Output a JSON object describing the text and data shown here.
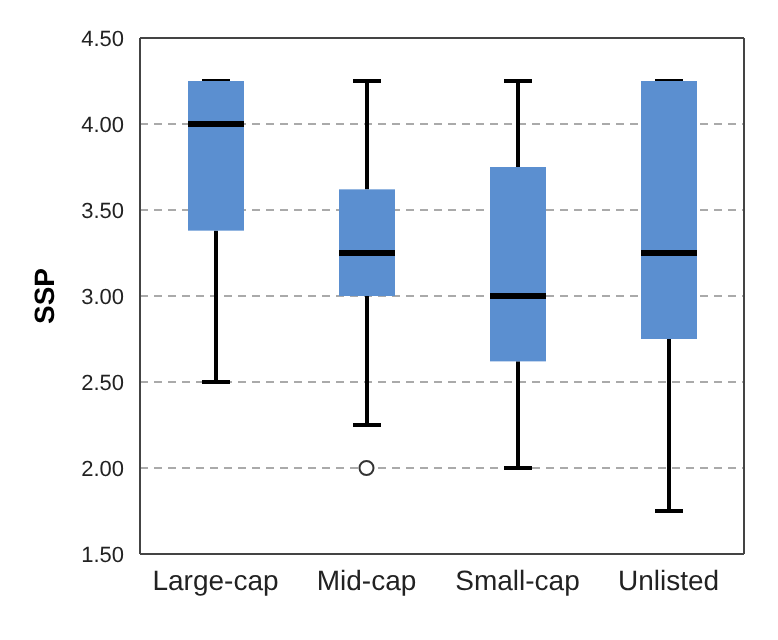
{
  "chart_data": {
    "type": "box",
    "ylabel": "SSP",
    "categories": [
      "Large-cap",
      "Mid-cap",
      "Small-cap",
      "Unlisted"
    ],
    "color": "#5b8fd0",
    "boxes": [
      {
        "low": 2.5,
        "q1": 3.38,
        "median": 4.0,
        "q3": 4.25,
        "high": 4.25
      },
      {
        "low": 2.25,
        "q1": 3.0,
        "median": 3.25,
        "q3": 3.62,
        "high": 4.25,
        "outliers": [
          2.0
        ]
      },
      {
        "low": 2.0,
        "q1": 2.62,
        "median": 3.0,
        "q3": 3.75,
        "high": 4.25
      },
      {
        "low": 1.75,
        "q1": 2.75,
        "median": 3.25,
        "q3": 4.25,
        "high": 4.25
      }
    ],
    "ylim": [
      1.5,
      4.5
    ],
    "yticks": [
      {
        "value": 1.5,
        "label": "1.50"
      },
      {
        "value": 2.0,
        "label": "2.00"
      },
      {
        "value": 2.5,
        "label": "2.50"
      },
      {
        "value": 3.0,
        "label": "3.00"
      },
      {
        "value": 3.5,
        "label": "3.50"
      },
      {
        "value": 4.0,
        "label": "4.00"
      },
      {
        "value": 4.5,
        "label": "4.50"
      }
    ],
    "grid": "y"
  }
}
